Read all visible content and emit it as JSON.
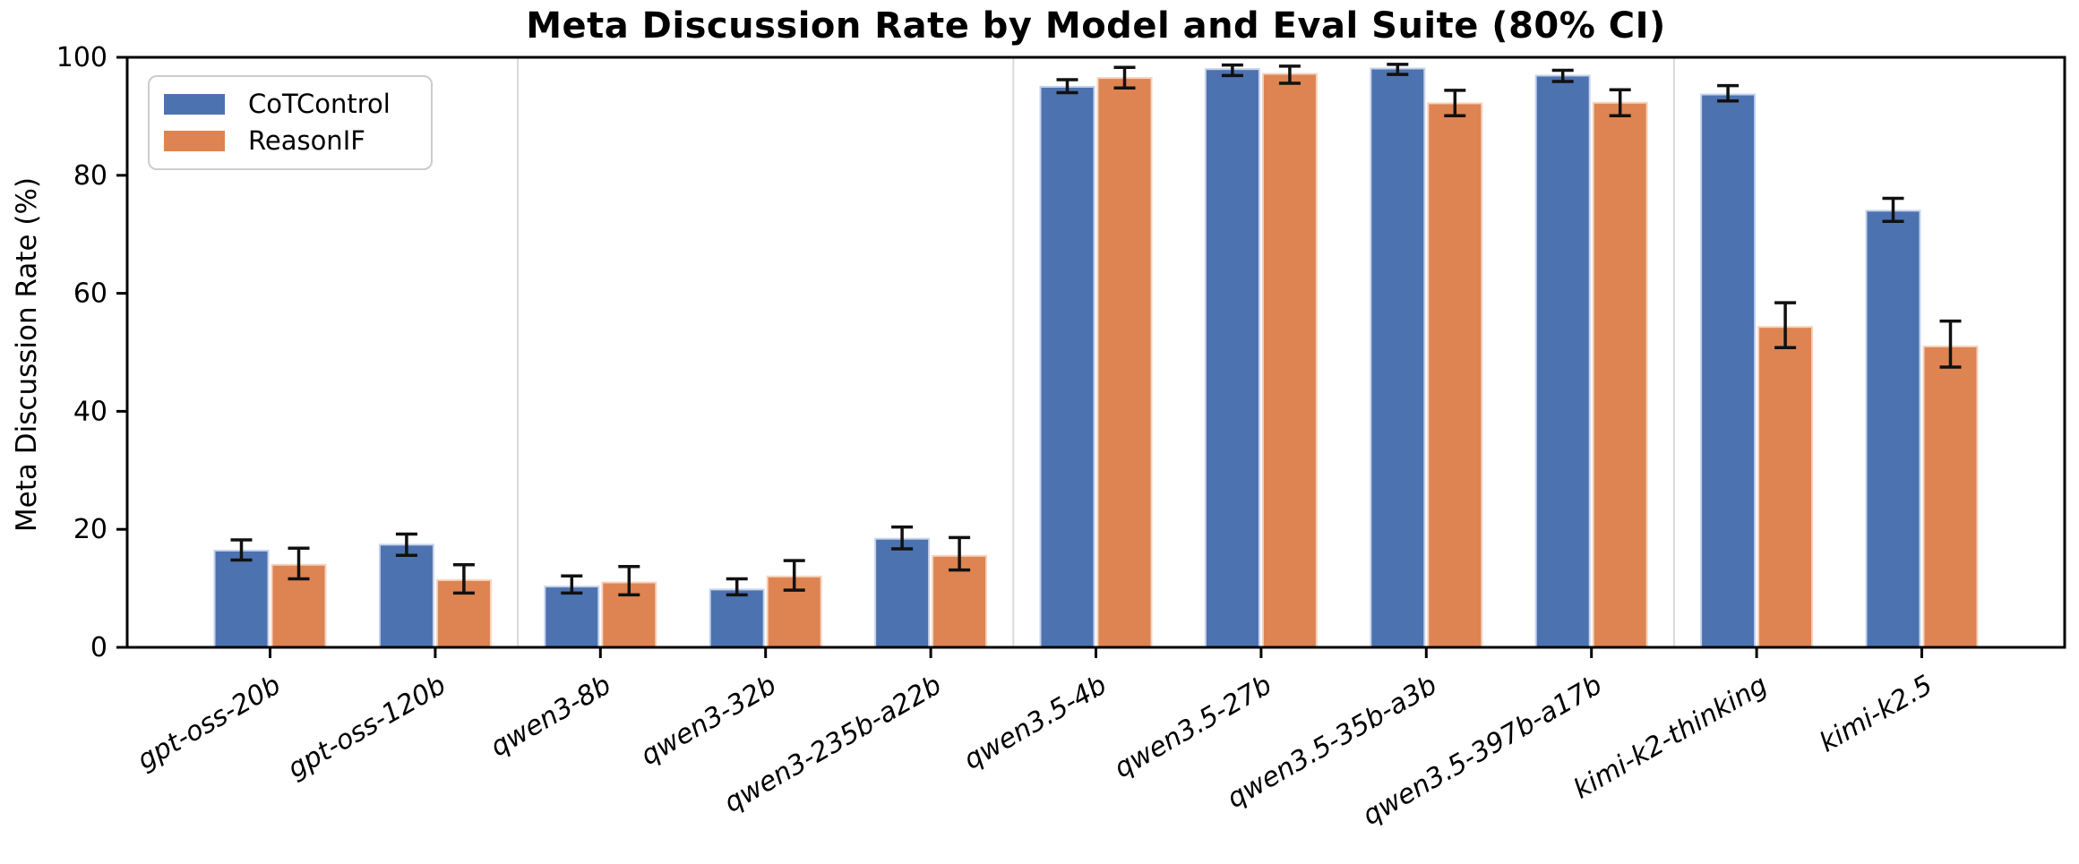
{
  "figure": {
    "title": "Meta Discussion Rate by Model and Eval Suite (80% CI)",
    "ylabel": "Meta Discussion Rate (%)"
  },
  "legend": {
    "items": [
      {
        "label": "CoTControl",
        "color": "#4C72B0"
      },
      {
        "label": "ReasonIF",
        "color": "#DD8452"
      }
    ]
  },
  "chart_data": {
    "type": "bar",
    "title": "Meta Discussion Rate by Model and Eval Suite (80% CI)",
    "xlabel": "",
    "ylabel": "Meta Discussion Rate (%)",
    "ylim": [
      0,
      100
    ],
    "yticks": [
      0,
      20,
      40,
      60,
      80,
      100
    ],
    "grid": false,
    "legend_position": "upper left",
    "error_bars": "80% CI",
    "categories": [
      "gpt-oss-20b",
      "gpt-oss-120b",
      "qwen3-8b",
      "qwen3-32b",
      "qwen3-235b-a22b",
      "qwen3.5-4b",
      "qwen3.5-27b",
      "qwen3.5-35b-a3b",
      "qwen3.5-397b-a17b",
      "kimi-k2-thinking",
      "kimi-k2.5"
    ],
    "series": [
      {
        "name": "CoTControl",
        "color": "#4C72B0",
        "edge_color": "#c7d2ea",
        "values": [
          16.4,
          17.4,
          10.3,
          9.8,
          18.4,
          95.0,
          98.0,
          98.1,
          96.9,
          93.7,
          74.0
        ],
        "ci": [
          [
            14.8,
            18.2
          ],
          [
            15.6,
            19.2
          ],
          [
            9.2,
            12.1
          ],
          [
            8.9,
            11.6
          ],
          [
            16.7,
            20.4
          ],
          [
            94.0,
            96.2
          ],
          [
            96.9,
            98.7
          ],
          [
            97.1,
            98.8
          ],
          [
            95.9,
            97.8
          ],
          [
            92.6,
            95.2
          ],
          [
            72.2,
            76.1
          ]
        ]
      },
      {
        "name": "ReasonIF",
        "color": "#DD8452",
        "edge_color": "#f4d4bf",
        "values": [
          14.0,
          11.4,
          11.0,
          12.0,
          15.5,
          96.5,
          97.2,
          92.2,
          92.3,
          54.3,
          51.0
        ],
        "ci": [
          [
            11.6,
            16.8
          ],
          [
            9.2,
            14.0
          ],
          [
            8.9,
            13.7
          ],
          [
            9.7,
            14.7
          ],
          [
            13.1,
            18.6
          ],
          [
            94.8,
            98.3
          ],
          [
            95.6,
            98.5
          ],
          [
            90.1,
            94.4
          ],
          [
            90.1,
            94.5
          ],
          [
            50.8,
            58.4
          ],
          [
            47.5,
            55.3
          ]
        ]
      }
    ],
    "family_separators_after": [
      "gpt-oss-120b",
      "qwen3-235b-a22b",
      "qwen3.5-397b-a17b"
    ],
    "error_bar_color": "#111111",
    "separator_color": "#d9d9d9",
    "axis_color": "#000000"
  }
}
